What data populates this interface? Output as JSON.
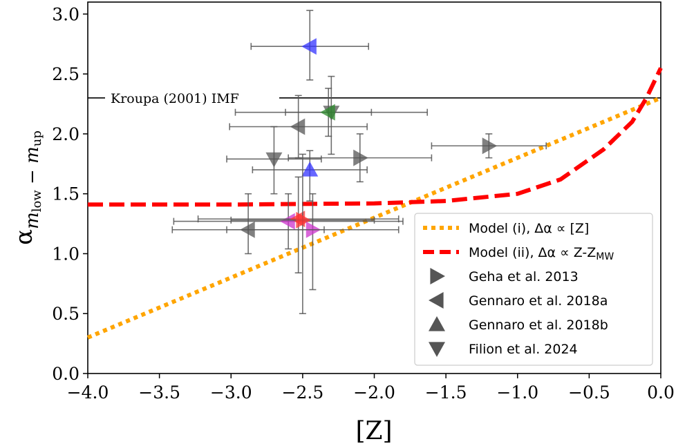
{
  "chart_data": {
    "type": "scatter",
    "xlabel": "[Z]",
    "ylabel": {
      "base": "α",
      "sub1": "m",
      "sub1_sub": "low",
      "sep": " − ",
      "sub2": "m",
      "sub2_sub": "up"
    },
    "xlim": [
      -4.0,
      0.0
    ],
    "ylim": [
      0.0,
      3.1
    ],
    "x_ticks": [
      "−4.0",
      "−3.5",
      "−3.0",
      "−2.5",
      "−2.0",
      "−1.5",
      "−1.0",
      "−0.5",
      "0.0"
    ],
    "x_tick_values": [
      -4.0,
      -3.5,
      -3.0,
      -2.5,
      -2.0,
      -1.5,
      -1.0,
      -0.5,
      0.0
    ],
    "y_ticks": [
      "0.0",
      "0.5",
      "1.0",
      "1.5",
      "2.0",
      "2.5",
      "3.0"
    ],
    "y_tick_values": [
      0.0,
      0.5,
      1.0,
      1.5,
      2.0,
      2.5,
      3.0
    ],
    "grid": false,
    "legend_position": "lower-right",
    "reference_line": {
      "y": 2.3,
      "label": "Kroupa (2001) IMF"
    },
    "models": [
      {
        "name": "Model (i), Δα ∝ [Z]",
        "style": "dotted",
        "color": "#FFA500",
        "x": [
          -4.0,
          0.0
        ],
        "y": [
          0.3,
          2.3
        ]
      },
      {
        "name": "Model (ii), Δα ∝ Z-Z",
        "name_sub": "MW",
        "style": "dashed",
        "color": "#FF0000",
        "x": [
          -4.0,
          -3.0,
          -2.5,
          -2.0,
          -1.5,
          -1.0,
          -0.7,
          -0.4,
          -0.2,
          -0.1,
          0.0
        ],
        "y": [
          1.41,
          1.41,
          1.415,
          1.42,
          1.44,
          1.5,
          1.62,
          1.87,
          2.1,
          2.3,
          2.55
        ]
      }
    ],
    "marker_legend": [
      {
        "label": "Geha et al. 2013",
        "marker": "triangle-right"
      },
      {
        "label": "Gennaro et al. 2018a",
        "marker": "triangle-left"
      },
      {
        "label": "Gennaro et al. 2018b",
        "marker": "triangle-up"
      },
      {
        "label": "Filion et al. 2024",
        "marker": "triangle-down"
      }
    ],
    "points": [
      {
        "x": -2.45,
        "y": 2.73,
        "xerr": [
          0.41,
          0.41
        ],
        "yerr": [
          0.28,
          0.3
        ],
        "marker": "triangle-left",
        "color": "#3333FF"
      },
      {
        "x": -2.3,
        "y": 2.18,
        "xerr": [
          0.67,
          0.67
        ],
        "yerr": [
          0.35,
          0.3
        ],
        "marker": "triangle-down",
        "color": "#555555"
      },
      {
        "x": -2.32,
        "y": 2.18,
        "xerr": [
          0.3,
          0.3
        ],
        "yerr": [
          0.2,
          0.2
        ],
        "marker": "triangle-left",
        "color": "#2E8B2E"
      },
      {
        "x": -2.53,
        "y": 2.06,
        "xerr": [
          0.48,
          0.48
        ],
        "yerr": [
          0.26,
          0.26
        ],
        "marker": "triangle-left",
        "color": "#555555"
      },
      {
        "x": -2.7,
        "y": 1.79,
        "xerr": [
          0.33,
          0.33
        ],
        "yerr": [
          0.29,
          0.27
        ],
        "marker": "triangle-down",
        "color": "#555555"
      },
      {
        "x": -2.1,
        "y": 1.8,
        "xerr": [
          0.5,
          0.5
        ],
        "yerr": [
          0.2,
          0.2
        ],
        "marker": "triangle-right",
        "color": "#555555"
      },
      {
        "x": -1.2,
        "y": 1.9,
        "xerr": [
          0.4,
          0.4
        ],
        "yerr": [
          0.1,
          0.1
        ],
        "marker": "triangle-right",
        "color": "#555555"
      },
      {
        "x": -2.45,
        "y": 1.7,
        "xerr": [
          0.4,
          0.4
        ],
        "yerr": [
          0.26,
          0.16
        ],
        "marker": "triangle-up",
        "color": "#3333FF"
      },
      {
        "x": -2.6,
        "y": 1.27,
        "xerr": [
          0.8,
          0.8
        ],
        "yerr": [
          0.23,
          0.23
        ],
        "marker": "triangle-left",
        "color": "#CC33CC"
      },
      {
        "x": -2.53,
        "y": 1.29,
        "xerr": [
          0.7,
          0.7
        ],
        "yerr": [
          0.45,
          0.35
        ],
        "marker": "triangle-left",
        "color": "#FF3333"
      },
      {
        "x": -2.5,
        "y": 1.28,
        "xerr": [
          0.5,
          0.5
        ],
        "yerr": [
          0.78,
          0.55
        ],
        "marker": "triangle-right",
        "color": "#FF3333"
      },
      {
        "x": -2.43,
        "y": 1.2,
        "xerr": [
          0.6,
          0.6
        ],
        "yerr": [
          0.5,
          0.3
        ],
        "marker": "triangle-right",
        "color": "#CC33CC"
      },
      {
        "x": -2.88,
        "y": 1.2,
        "xerr": [
          0.53,
          0.53
        ],
        "yerr": [
          0.2,
          0.3
        ],
        "marker": "triangle-left",
        "color": "#555555"
      }
    ]
  }
}
